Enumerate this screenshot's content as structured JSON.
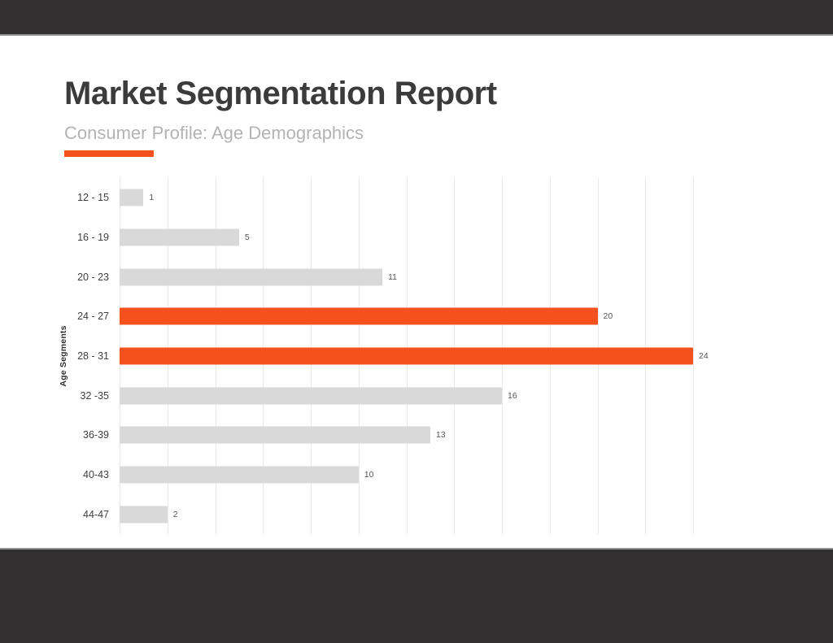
{
  "header": {
    "title": "Market Segmentation Report",
    "subtitle": "Consumer Profile: Age Demographics"
  },
  "colors": {
    "accent": "#F4511E",
    "bar_default": "#D9D9D9",
    "bar_highlight": "#F4511E",
    "frame": "#323031",
    "gridline": "#E9E9E9",
    "title_text": "#3B3B3B",
    "subtitle_text": "#B3B3B3",
    "category_text": "#3F3F3F",
    "value_text": "#555555"
  },
  "chart_data": {
    "type": "bar",
    "orientation": "horizontal",
    "title": "",
    "xlabel": "",
    "ylabel": "Age Segments",
    "categories": [
      "12 - 15",
      "16 - 19",
      "20 - 23",
      "24 - 27",
      "28 - 31",
      "32 -35",
      "36-39",
      "40-43",
      "44-47"
    ],
    "values": [
      1,
      5,
      11,
      20,
      24,
      16,
      13,
      10,
      2
    ],
    "highlighted_indices": [
      3,
      4
    ],
    "xlim": [
      0,
      24
    ],
    "grid_step": 2,
    "grid": true,
    "value_labels_shown": true,
    "legend": false
  }
}
